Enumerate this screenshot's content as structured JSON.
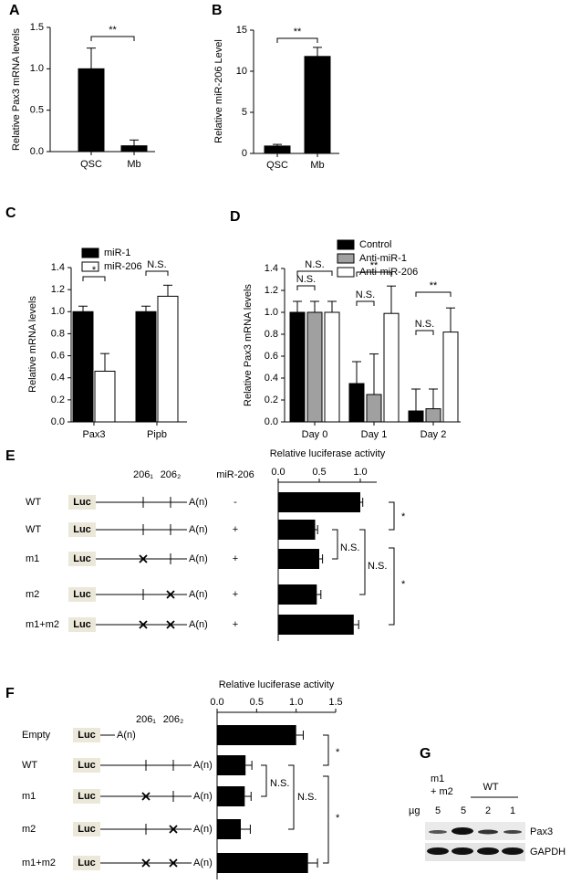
{
  "chart_data": [
    {
      "panel": "A",
      "type": "bar",
      "ylabel": "Relative Pax3 mRNA levels",
      "categories": [
        "QSC",
        "Mb"
      ],
      "values": [
        1.0,
        0.07
      ],
      "errors": [
        0.25,
        0.07
      ],
      "color": "#000000",
      "ylim": [
        0,
        1.5
      ],
      "yticks": [
        {
          "value": 0,
          "label": "0.0"
        },
        0.5,
        {
          "value": 1,
          "label": "1.0"
        },
        1.5
      ],
      "annotations": [
        "**"
      ]
    },
    {
      "panel": "B",
      "type": "bar",
      "ylabel": "Relative miR-206 Level",
      "categories": [
        "QSC",
        "Mb"
      ],
      "values": [
        0.9,
        11.8
      ],
      "errors": [
        0.2,
        1.1
      ],
      "color": "#000000",
      "ylim": [
        0,
        15
      ],
      "yticks": [
        0,
        5,
        10,
        15
      ],
      "annotations": [
        "**"
      ]
    },
    {
      "panel": "C",
      "type": "bar",
      "ylabel": "Relative mRNA levels",
      "categories": [
        "Pax3",
        "Pipb"
      ],
      "series": [
        {
          "name": "miR-1",
          "color": "#000000",
          "values": [
            1.0,
            1.0
          ],
          "errors": [
            0.05,
            0.05
          ]
        },
        {
          "name": "miR-206",
          "color": "#ffffff",
          "values": [
            0.46,
            1.14
          ],
          "errors": [
            0.16,
            0.1
          ]
        }
      ],
      "ylim": [
        0,
        1.4
      ],
      "yticks": [
        {
          "value": 0,
          "label": "0.0"
        },
        0.2,
        0.4,
        0.6,
        0.8,
        {
          "value": 1,
          "label": "1.0"
        },
        1.2,
        1.4
      ],
      "annotations": [
        "*",
        "N.S."
      ]
    },
    {
      "panel": "D",
      "type": "bar",
      "ylabel": "Relative Pax3 mRNA levels",
      "categories": [
        "Day 0",
        "Day 1",
        "Day 2"
      ],
      "series": [
        {
          "name": "Control",
          "color": "#000000",
          "values": [
            1.0,
            0.35,
            0.1
          ],
          "errors": [
            0.1,
            0.2,
            0.2
          ]
        },
        {
          "name": "Anti-miR-1",
          "color": "#a0a0a0",
          "values": [
            1.0,
            0.25,
            0.12
          ],
          "errors": [
            0.1,
            0.37,
            0.18
          ]
        },
        {
          "name": "Anti-miR-206",
          "color": "#ffffff",
          "values": [
            1.0,
            0.99,
            0.82
          ],
          "errors": [
            0.1,
            0.25,
            0.22
          ]
        }
      ],
      "ylim": [
        0,
        1.4
      ],
      "yticks": [
        {
          "value": 0,
          "label": "0.0"
        },
        0.2,
        0.4,
        0.6,
        0.8,
        {
          "value": 1,
          "label": "1.0"
        },
        1.2,
        1.4
      ],
      "annotations": [
        "N.S.",
        "N.S.",
        "**",
        "N.S.",
        "**",
        "N.S."
      ]
    },
    {
      "panel": "E",
      "type": "barh",
      "xlabel": "Relative luciferase activity",
      "categories": [
        "WT",
        "WT",
        "m1",
        "m2",
        "m1+m2"
      ],
      "treatment_label": "miR-206",
      "treatment": [
        "-",
        "+",
        "+",
        "+",
        "+"
      ],
      "values": [
        1.0,
        0.45,
        0.5,
        0.47,
        0.92
      ],
      "errors": [
        0.03,
        0.03,
        0.04,
        0.05,
        0.06
      ],
      "color": "#000000",
      "xlim": [
        0,
        1.2
      ],
      "xticks": [
        {
          "value": 0,
          "label": "0.0"
        },
        0.5,
        {
          "value": 1,
          "label": "1.0"
        }
      ],
      "reporter_label": "Luc",
      "tail_label": "A(n)",
      "site_labels": [
        "206₁",
        "206₂"
      ],
      "sites_mutated": [
        [
          false,
          false
        ],
        [
          false,
          false
        ],
        [
          true,
          false
        ],
        [
          false,
          true
        ],
        [
          true,
          true
        ]
      ],
      "annotations": [
        "*",
        "N.S.",
        "N.S.",
        "*"
      ]
    },
    {
      "panel": "F",
      "type": "barh",
      "xlabel": "Relative luciferase activity",
      "categories": [
        "Empty",
        "WT",
        "m1",
        "m2",
        "m1+m2"
      ],
      "values": [
        1.0,
        0.36,
        0.35,
        0.3,
        1.15
      ],
      "errors": [
        0.09,
        0.08,
        0.08,
        0.12,
        0.12
      ],
      "color": "#000000",
      "xlim": [
        0,
        1.5
      ],
      "xticks": [
        {
          "value": 0,
          "label": "0.0"
        },
        0.5,
        {
          "value": 1,
          "label": "1.0"
        },
        1.5
      ],
      "reporter_label": "Luc",
      "tail_label": "A(n)",
      "site_labels": [
        "206₁",
        "206₂"
      ],
      "sites_mutated": [
        [],
        [
          false,
          false
        ],
        [
          true,
          false
        ],
        [
          false,
          true
        ],
        [
          true,
          true
        ]
      ],
      "annotations": [
        "*",
        "N.S.",
        "N.S.",
        "*"
      ]
    }
  ],
  "blot": {
    "panel": "G",
    "group_labels": [
      [
        "m1",
        "+ m2"
      ],
      [
        "WT"
      ]
    ],
    "unit_label": "µg",
    "amounts": [
      5,
      5,
      2,
      1
    ],
    "bands": [
      "Pax3",
      "GAPDH"
    ]
  }
}
